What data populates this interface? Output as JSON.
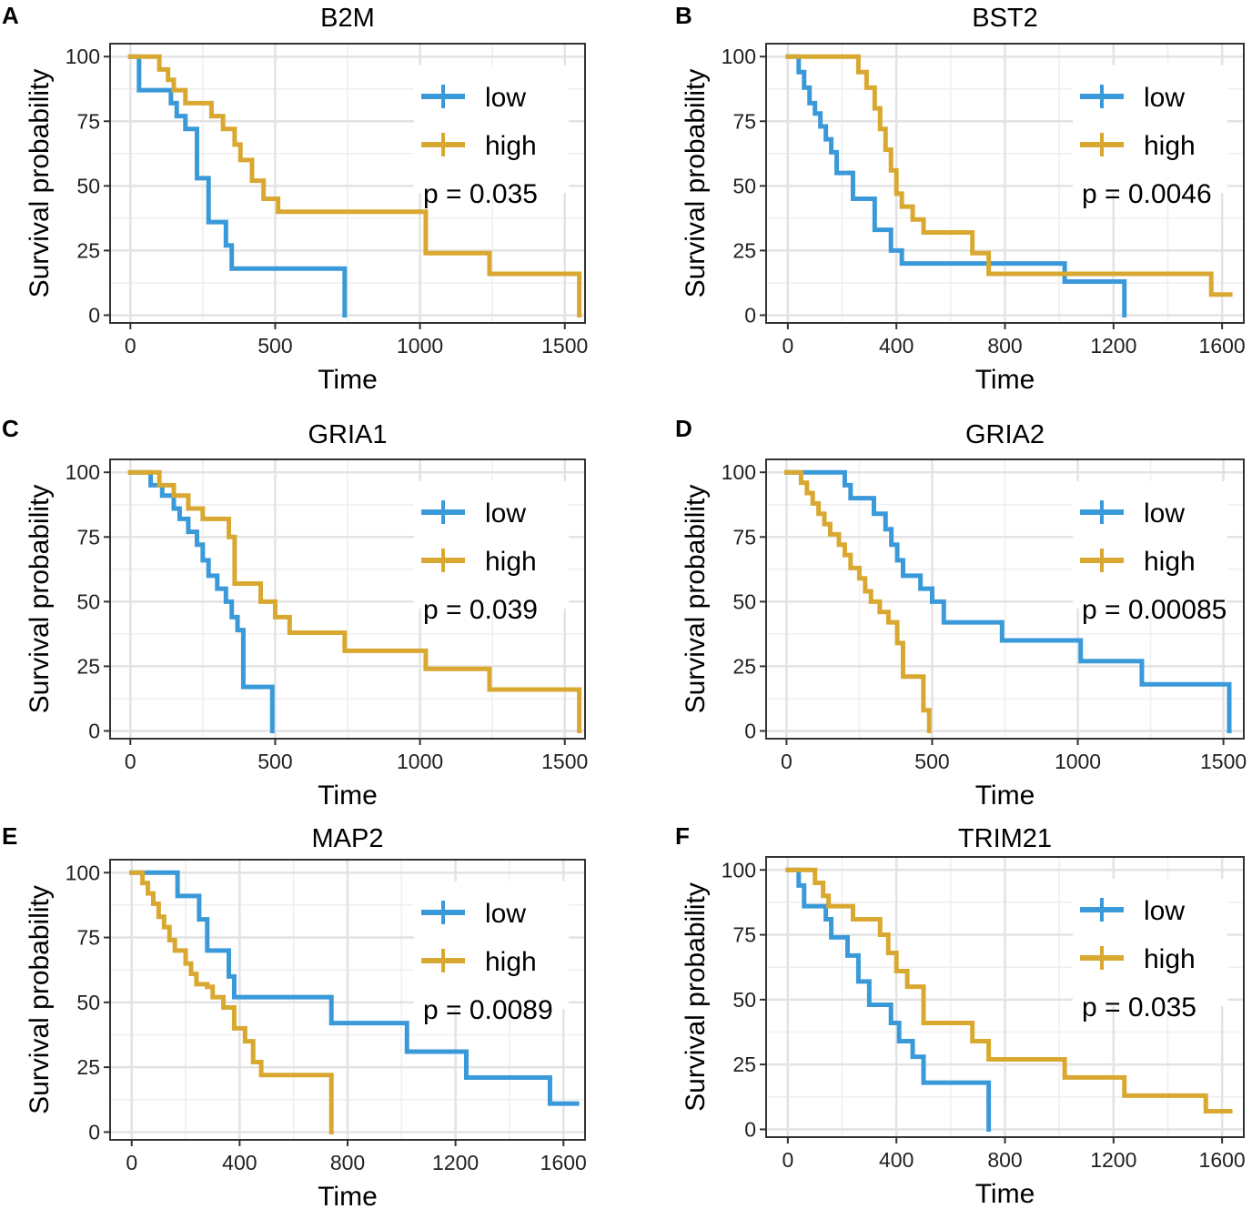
{
  "figure": {
    "description_colors": {
      "low": "#3a9ad9",
      "high": "#d9a830",
      "grid": "#e3e3e3",
      "frame": "#333333"
    },
    "xlabel": "Time",
    "ylabel": "Survival probability",
    "legend_low": "low",
    "legend_high": "high"
  },
  "chart_data": [
    {
      "type": "line",
      "panel": "A",
      "title": "B2M",
      "xlabel": "Time",
      "ylabel": "Survival probability",
      "xlim": [
        -70,
        1570
      ],
      "ylim": [
        -3,
        105
      ],
      "xticks": [
        0,
        500,
        1000,
        1500
      ],
      "yticks": [
        0,
        25,
        50,
        75,
        100
      ],
      "pvalue": "p = 0.035",
      "legend_position": "top-right",
      "series": [
        {
          "name": "low",
          "x": [
            0,
            20,
            30,
            130,
            140,
            160,
            190,
            210,
            230,
            240,
            270,
            300,
            330,
            350,
            740,
            740
          ],
          "y": [
            100,
            100,
            87,
            87,
            82,
            77,
            72,
            72,
            53,
            53,
            36,
            36,
            27,
            18,
            18,
            0
          ]
        },
        {
          "name": "high",
          "x": [
            0,
            60,
            100,
            130,
            150,
            190,
            230,
            280,
            320,
            360,
            380,
            420,
            460,
            510,
            740,
            1020,
            1240,
            1550,
            1550
          ],
          "y": [
            100,
            100,
            95,
            91,
            87,
            82,
            82,
            77,
            72,
            66,
            60,
            52,
            45,
            40,
            40,
            24,
            16,
            8,
            0
          ]
        }
      ]
    },
    {
      "type": "line",
      "panel": "B",
      "title": "BST2",
      "xlabel": "Time",
      "ylabel": "Survival probability",
      "xlim": [
        -80,
        1680
      ],
      "ylim": [
        -3,
        105
      ],
      "xticks": [
        0,
        400,
        800,
        1200,
        1600
      ],
      "yticks": [
        0,
        25,
        50,
        75,
        100
      ],
      "pvalue": "p = 0.0046",
      "legend_position": "top-right",
      "series": [
        {
          "name": "low",
          "x": [
            0,
            20,
            40,
            60,
            80,
            100,
            120,
            140,
            160,
            180,
            240,
            320,
            380,
            420,
            740,
            1020,
            1240,
            1240
          ],
          "y": [
            100,
            100,
            94,
            88,
            82,
            78,
            73,
            68,
            63,
            55,
            45,
            33,
            25,
            20,
            20,
            13,
            7,
            0
          ]
        },
        {
          "name": "high",
          "x": [
            0,
            220,
            260,
            290,
            320,
            340,
            360,
            380,
            400,
            420,
            460,
            500,
            560,
            680,
            740,
            1540,
            1560,
            1630
          ],
          "y": [
            100,
            100,
            94,
            88,
            80,
            72,
            64,
            56,
            47,
            42,
            37,
            32,
            32,
            24,
            16,
            16,
            8,
            8
          ]
        }
      ]
    },
    {
      "type": "line",
      "panel": "C",
      "title": "GRIA1",
      "xlabel": "Time",
      "ylabel": "Survival probability",
      "xlim": [
        -70,
        1570
      ],
      "ylim": [
        -3,
        105
      ],
      "xticks": [
        0,
        500,
        1000,
        1500
      ],
      "yticks": [
        0,
        25,
        50,
        75,
        100
      ],
      "pvalue": "p = 0.039",
      "legend_position": "top-right",
      "series": [
        {
          "name": "low",
          "x": [
            0,
            30,
            70,
            110,
            150,
            170,
            200,
            230,
            250,
            270,
            300,
            330,
            350,
            370,
            390,
            490,
            490
          ],
          "y": [
            100,
            100,
            95,
            91,
            86,
            82,
            77,
            72,
            66,
            60,
            55,
            50,
            44,
            39,
            17,
            17,
            0
          ]
        },
        {
          "name": "high",
          "x": [
            0,
            50,
            100,
            150,
            200,
            250,
            300,
            320,
            340,
            360,
            400,
            450,
            500,
            550,
            700,
            740,
            1020,
            1240,
            1550,
            1550
          ],
          "y": [
            100,
            100,
            95,
            91,
            86,
            82,
            82,
            82,
            75,
            57,
            57,
            50,
            44,
            38,
            38,
            31,
            24,
            16,
            8,
            0
          ]
        }
      ]
    },
    {
      "type": "line",
      "panel": "D",
      "title": "GRIA2",
      "xlabel": "Time",
      "ylabel": "Survival probability",
      "xlim": [
        -70,
        1570
      ],
      "ylim": [
        -3,
        105
      ],
      "xticks": [
        0,
        500,
        1000,
        1500
      ],
      "yticks": [
        0,
        25,
        50,
        75,
        100
      ],
      "pvalue": "p = 0.00085",
      "legend_position": "top-right",
      "series": [
        {
          "name": "low",
          "x": [
            0,
            150,
            200,
            220,
            300,
            320,
            340,
            360,
            380,
            400,
            460,
            500,
            540,
            740,
            1010,
            1220,
            1520,
            1520
          ],
          "y": [
            100,
            100,
            95,
            90,
            84,
            84,
            78,
            72,
            66,
            60,
            55,
            50,
            42,
            35,
            27,
            18,
            9,
            0
          ]
        },
        {
          "name": "high",
          "x": [
            0,
            20,
            50,
            70,
            90,
            110,
            130,
            150,
            180,
            200,
            220,
            250,
            270,
            290,
            320,
            350,
            380,
            400,
            470,
            490
          ],
          "y": [
            100,
            100,
            96,
            92,
            88,
            84,
            80,
            76,
            72,
            68,
            63,
            59,
            54,
            50,
            46,
            42,
            34,
            21,
            8,
            0
          ]
        }
      ]
    },
    {
      "type": "line",
      "panel": "E",
      "title": "MAP2",
      "xlabel": "Time",
      "ylabel": "Survival probability",
      "xlim": [
        -80,
        1680
      ],
      "ylim": [
        -3,
        105
      ],
      "xticks": [
        0,
        400,
        800,
        1200,
        1600
      ],
      "yticks": [
        0,
        25,
        50,
        75,
        100
      ],
      "pvalue": "p = 0.0089",
      "legend_position": "top-right",
      "series": [
        {
          "name": "low",
          "x": [
            0,
            150,
            170,
            250,
            280,
            360,
            380,
            740,
            1020,
            1240,
            1550,
            1650
          ],
          "y": [
            100,
            100,
            91,
            82,
            70,
            60,
            52,
            42,
            31,
            21,
            11,
            11
          ]
        },
        {
          "name": "high",
          "x": [
            0,
            20,
            40,
            60,
            80,
            100,
            120,
            140,
            160,
            200,
            220,
            240,
            280,
            300,
            340,
            380,
            420,
            450,
            480,
            740,
            740
          ],
          "y": [
            100,
            100,
            96,
            92,
            88,
            83,
            79,
            74,
            70,
            65,
            61,
            57,
            56,
            52,
            48,
            40,
            35,
            27,
            22,
            13,
            0
          ]
        }
      ]
    },
    {
      "type": "line",
      "panel": "F",
      "title": "TRIM21",
      "xlabel": "Time",
      "ylabel": "Survival probability",
      "xlim": [
        -80,
        1680
      ],
      "ylim": [
        -3,
        105
      ],
      "xticks": [
        0,
        400,
        800,
        1200,
        1600
      ],
      "yticks": [
        0,
        25,
        50,
        75,
        100
      ],
      "pvalue": "p = 0.035",
      "legend_position": "top-right",
      "series": [
        {
          "name": "low",
          "x": [
            0,
            20,
            40,
            60,
            100,
            140,
            160,
            220,
            260,
            300,
            340,
            380,
            410,
            460,
            500,
            740,
            740
          ],
          "y": [
            100,
            100,
            94,
            86,
            86,
            81,
            74,
            67,
            57,
            48,
            48,
            41,
            34,
            28,
            18,
            18,
            0
          ]
        },
        {
          "name": "high",
          "x": [
            0,
            60,
            100,
            130,
            150,
            180,
            200,
            240,
            300,
            340,
            370,
            400,
            440,
            500,
            600,
            680,
            740,
            880,
            1020,
            1240,
            1540,
            1630
          ],
          "y": [
            100,
            100,
            95,
            90,
            86,
            86,
            86,
            81,
            81,
            75,
            68,
            61,
            55,
            41,
            41,
            34,
            27,
            27,
            20,
            13,
            7,
            7
          ]
        }
      ]
    }
  ]
}
